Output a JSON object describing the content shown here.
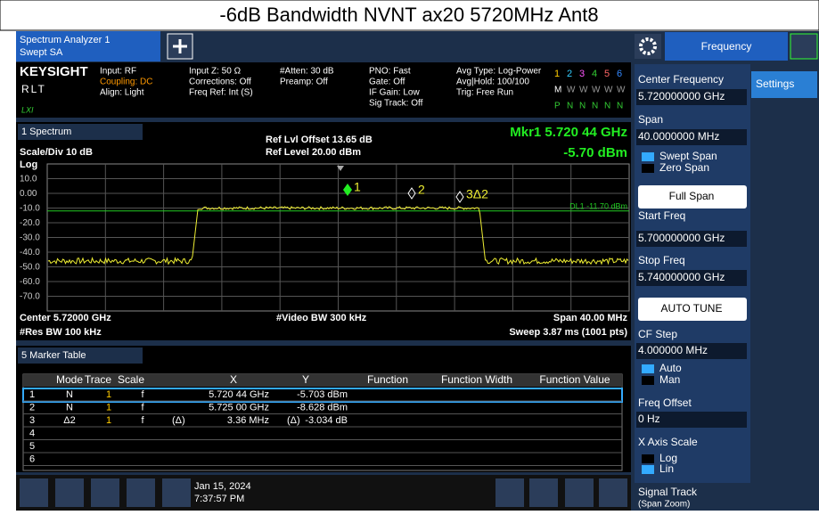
{
  "header": {
    "title": "-6dB Bandwidth NVNT ax20 5720MHz Ant8"
  },
  "toolbar": {
    "app": "Spectrum Analyzer 1",
    "mode": "Swept SA",
    "menu": "Frequency"
  },
  "info": {
    "brand": "KEYSIGHT",
    "rlt": "RLT",
    "lxi": "LXI",
    "columns": [
      [
        "Input: RF",
        "Coupling: DC",
        "Align: Light"
      ],
      [
        "Input Z: 50 Ω",
        "Corrections: Off",
        "Freq Ref: Int (S)"
      ],
      [
        "#Atten: 30 dB",
        "Preamp: Off"
      ],
      [
        "PNO: Fast",
        "Gate: Off",
        "IF Gain: Low",
        "Sig Track: Off"
      ],
      [
        "Avg Type: Log-Power",
        "Avg|Hold: 100/100",
        "Trig: Free Run"
      ]
    ],
    "traces": [
      "1",
      "2",
      "3",
      "4",
      "5",
      "6"
    ],
    "trace_types": [
      "M",
      "W",
      "W",
      "W",
      "W",
      "W"
    ],
    "detectors": [
      "P",
      "N",
      "N",
      "N",
      "N",
      "N"
    ]
  },
  "spectrum": {
    "window": "1 Spectrum",
    "scale": "Scale/Div 10 dB",
    "log": "Log",
    "ref_offset": "Ref Lvl Offset 13.65 dB",
    "ref_level": "Ref Level 20.00 dBm",
    "marker_readout": "Mkr1  5.720 44 GHz",
    "marker_value": "-5.70 dBm",
    "y_labels": [
      "10.0",
      "0.00",
      "-10.0",
      "-20.0",
      "-30.0",
      "-40.0",
      "-50.0",
      "-60.0",
      "-70.0"
    ],
    "display_line": "DL1 -11.70 dBm",
    "markers": [
      "1",
      "2",
      "3Δ2"
    ],
    "center": "Center 5.72000 GHz",
    "video_bw": "#Video BW 300 kHz",
    "span": "Span 40.00 MHz",
    "res_bw": "#Res BW 100 kHz",
    "sweep": "Sweep 3.87 ms (1001 pts)"
  },
  "table": {
    "title": "5 Marker Table",
    "headers": [
      "Mode",
      "Trace",
      "Scale",
      "X",
      "Y",
      "Function",
      "Function Width",
      "Function Value"
    ],
    "rows": [
      [
        "1",
        "N",
        "1",
        "f",
        "5.720 44 GHz",
        "-5.703 dBm"
      ],
      [
        "2",
        "N",
        "1",
        "f",
        "5.725 00 GHz",
        "-8.628 dBm"
      ],
      [
        "3",
        "Δ2",
        "1",
        "f",
        "(Δ)",
        "3.36 MHz",
        "(Δ)",
        "-3.034 dB"
      ],
      [
        "4"
      ],
      [
        "5"
      ],
      [
        "6"
      ]
    ]
  },
  "taskbar": {
    "date": "Jan 15, 2024",
    "time": "7:37:57 PM"
  },
  "panel": {
    "settings": "Settings",
    "items": [
      "Center Frequency",
      "5.720000000 GHz",
      "Span",
      "40.0000000 MHz",
      "Swept Span",
      "Zero Span",
      "Full Span",
      "Start Freq",
      "5.700000000 GHz",
      "Stop Freq",
      "5.740000000 GHz",
      "AUTO TUNE",
      "CF Step",
      "4.000000 MHz",
      "Auto",
      "Man",
      "Freq Offset",
      "0 Hz",
      "X Axis Scale",
      "Log",
      "Lin",
      "Signal Track",
      "(Span Zoom)"
    ]
  }
}
